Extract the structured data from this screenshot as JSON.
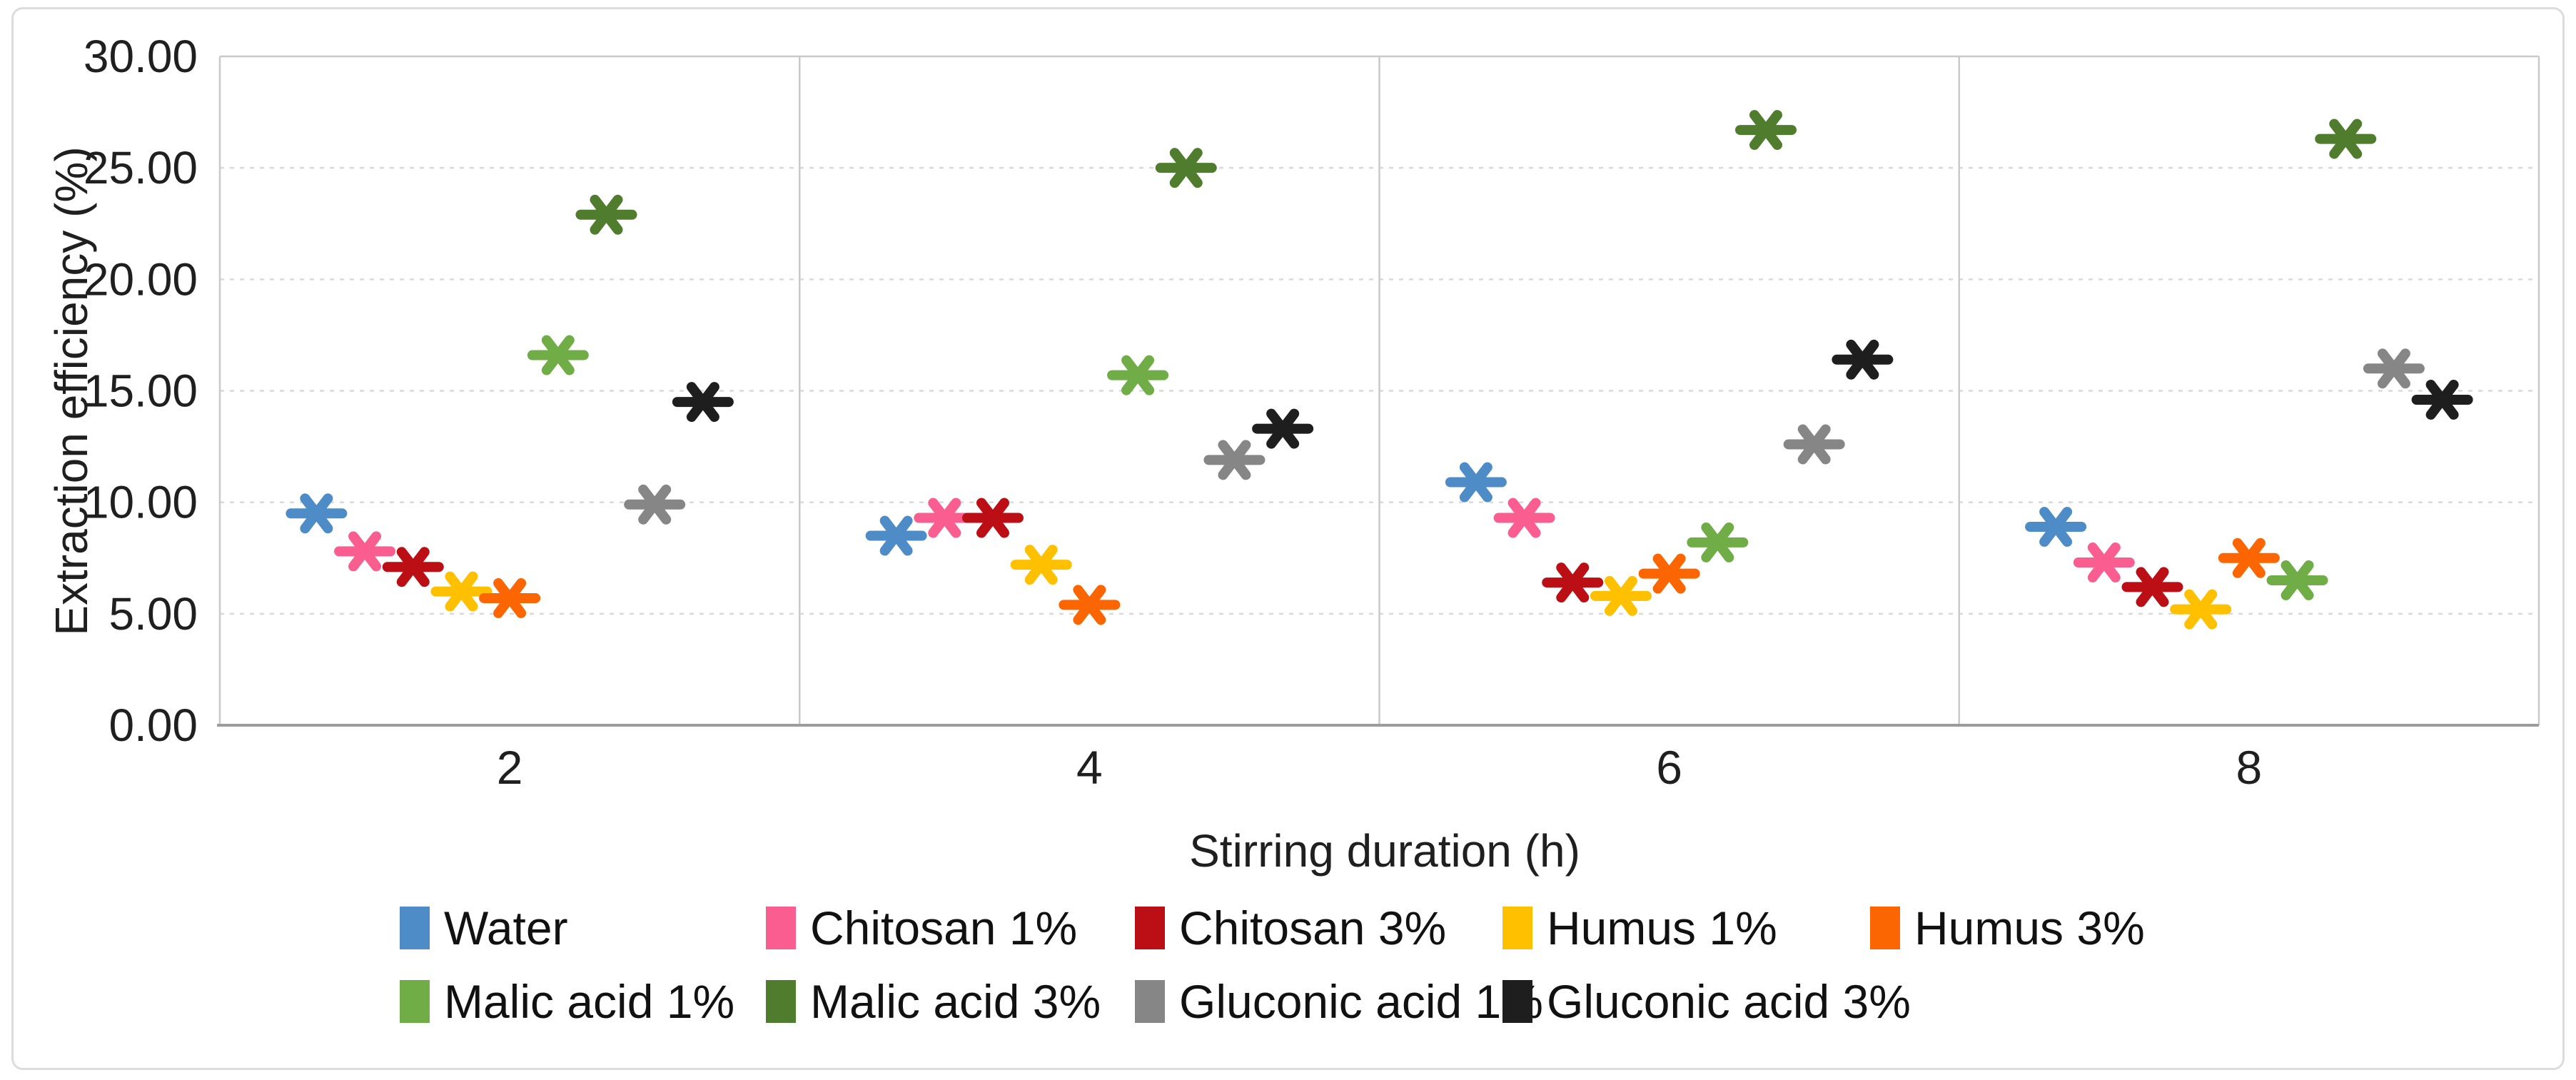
{
  "figure": {
    "y_axis_title": "Extraction efficiency (%)",
    "x_axis_title": "Stirring duration (h)"
  },
  "chart_data": {
    "type": "scatter",
    "marker": "asterisk-6-spoke",
    "title": "",
    "xlabel": "Stirring duration (h)",
    "ylabel": "Extraction efficiency (%)",
    "categories": [
      "2",
      "4",
      "6",
      "8"
    ],
    "ylim": [
      0,
      30
    ],
    "ytick_step": 5,
    "ytick_labels": [
      "0.00",
      "5.00",
      "10.00",
      "15.00",
      "20.00",
      "25.00",
      "30.00"
    ],
    "grid": "horizontal dashed gridlines every 5; solid vertical separators between category panels",
    "legend_position": "bottom, two left-aligned rows",
    "legend_rows": [
      [
        0,
        1,
        2,
        3,
        4
      ],
      [
        5,
        6,
        7,
        8
      ]
    ],
    "series": [
      {
        "name": "Water",
        "color": "#4E8CC8",
        "values": [
          9.5,
          8.5,
          10.9,
          8.9
        ]
      },
      {
        "name": "Chitosan 1%",
        "color": "#FA5D8F",
        "values": [
          7.8,
          9.3,
          9.3,
          7.3
        ]
      },
      {
        "name": "Chitosan 3%",
        "color": "#BC0E15",
        "values": [
          7.1,
          9.3,
          6.4,
          6.2
        ]
      },
      {
        "name": "Humus 1%",
        "color": "#FFC000",
        "values": [
          6.0,
          7.2,
          5.8,
          5.2
        ]
      },
      {
        "name": "Humus 3%",
        "color": "#FB6602",
        "values": [
          5.7,
          5.4,
          6.8,
          7.5
        ]
      },
      {
        "name": "Malic acid 1%",
        "color": "#70AD47",
        "values": [
          16.6,
          15.7,
          8.2,
          6.5
        ]
      },
      {
        "name": "Malic acid 3%",
        "color": "#4F7D2D",
        "values": [
          22.9,
          25.0,
          26.7,
          26.3
        ]
      },
      {
        "name": "Gluconic acid 1%",
        "color": "#868686",
        "values": [
          9.9,
          11.9,
          12.6,
          16.0
        ]
      },
      {
        "name": "Gluconic acid 3%",
        "color": "#1E1E1E",
        "values": [
          14.5,
          13.3,
          16.4,
          14.6
        ]
      }
    ],
    "style": {
      "gridline_color": "#D9D9D9",
      "separator_color": "#C9C9C9",
      "axis_line_color": "#9C9C9C",
      "outer_border_color": "#DCDCDC",
      "text_color": "#1F1F1F"
    }
  }
}
